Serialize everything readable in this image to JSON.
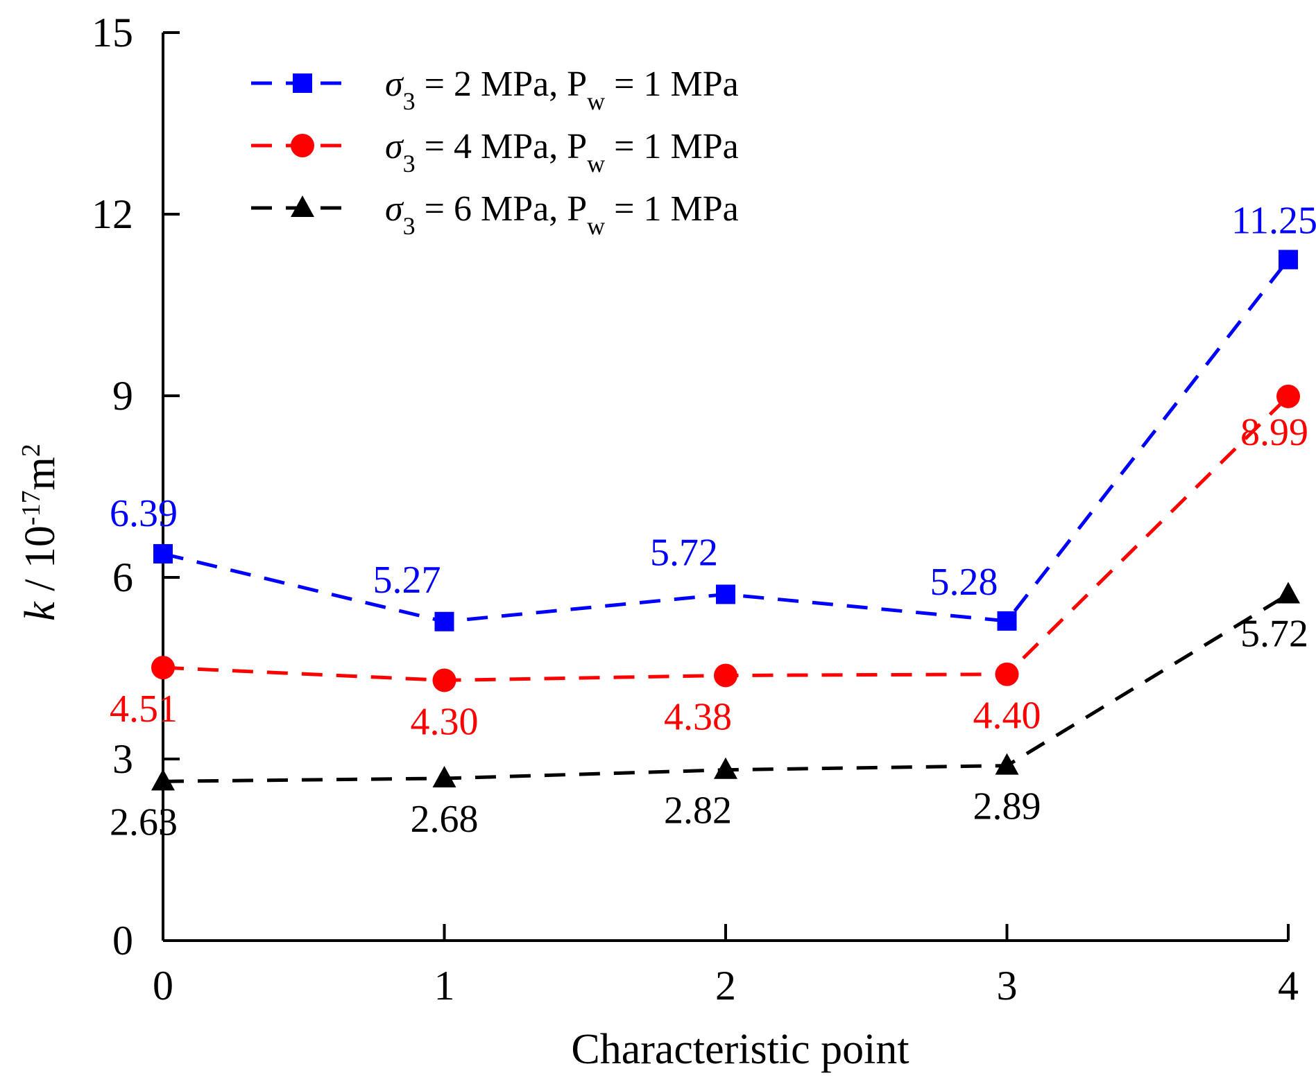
{
  "chart_data": {
    "type": "line",
    "title": "",
    "xlabel": "Characteristic point",
    "ylabel": {
      "symbol": "k",
      "unit_prefix": " / 10",
      "exponent": "-17",
      "unit": "m",
      "unit_exponent": "2"
    },
    "x": [
      0,
      1,
      2,
      3,
      4
    ],
    "x_tick_labels": [
      "0",
      "1",
      "2",
      "3",
      "4"
    ],
    "y_ticks": [
      0,
      3,
      6,
      9,
      12,
      15
    ],
    "y_tick_labels": [
      "0",
      "3",
      "6",
      "9",
      "12",
      "15"
    ],
    "xlim": [
      0,
      4
    ],
    "ylim": [
      0,
      15
    ],
    "grid": false,
    "legend_position": "top-left",
    "series": [
      {
        "name": "σ3 = 2 MPa, Pw = 1 MPa",
        "legend": {
          "sigma": "σ",
          "sigma_sub": "3",
          "middle": " = 2 MPa, P",
          "p_sub": "w",
          "end": " = 1 MPa"
        },
        "marker": "square",
        "color": "#0000ff",
        "values": [
          6.39,
          5.27,
          5.72,
          5.28,
          11.25
        ],
        "labels": [
          "6.39",
          "5.27",
          "5.72",
          "5.28",
          "11.25"
        ]
      },
      {
        "name": "σ3 = 4 MPa, Pw = 1 MPa",
        "legend": {
          "sigma": "σ",
          "sigma_sub": "3",
          "middle": " = 4 MPa, P",
          "p_sub": "w",
          "end": " = 1 MPa"
        },
        "marker": "circle",
        "color": "#ff0000",
        "values": [
          4.51,
          4.3,
          4.38,
          4.4,
          8.99
        ],
        "labels": [
          "4.51",
          "4.30",
          "4.38",
          "4.40",
          "8.99"
        ]
      },
      {
        "name": "σ3 = 6 MPa, Pw = 1 MPa",
        "legend": {
          "sigma": "σ",
          "sigma_sub": "3",
          "middle": " = 6 MPa, P",
          "p_sub": "w",
          "end": " = 1 MPa"
        },
        "marker": "triangle",
        "color": "#000000",
        "values": [
          2.63,
          2.68,
          2.82,
          2.89,
          5.72
        ],
        "labels": [
          "2.63",
          "2.68",
          "2.82",
          "2.89",
          "5.72"
        ]
      }
    ]
  }
}
